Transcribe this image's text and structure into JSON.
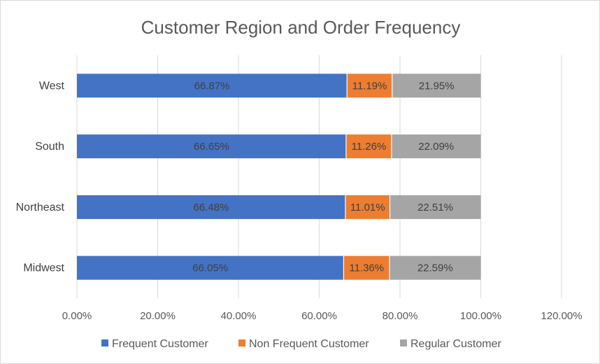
{
  "chart_data": {
    "type": "bar",
    "orientation": "horizontal",
    "stacked": true,
    "title": "Customer Region and Order Frequency",
    "categories": [
      "West",
      "South",
      "Northeast",
      "Midwest"
    ],
    "series": [
      {
        "name": "Frequent Customer",
        "color": "#4472C4",
        "values": [
          66.87,
          66.65,
          66.48,
          66.05
        ],
        "labels": [
          "66.87%",
          "66.65%",
          "66.48%",
          "66.05%"
        ]
      },
      {
        "name": "Non Frequent Customer",
        "color": "#ED7D31",
        "values": [
          11.19,
          11.26,
          11.01,
          11.36
        ],
        "labels": [
          "11.19%",
          "11.26%",
          "11.01%",
          "11.36%"
        ]
      },
      {
        "name": "Regular Customer",
        "color": "#A5A5A5",
        "values": [
          21.95,
          22.09,
          22.51,
          22.59
        ],
        "labels": [
          "21.95%",
          "22.09%",
          "22.51%",
          "22.59%"
        ]
      }
    ],
    "xlim": [
      0,
      120
    ],
    "xticks": [
      0,
      20,
      40,
      60,
      80,
      100,
      120
    ],
    "xtick_labels": [
      "0.00%",
      "20.00%",
      "40.00%",
      "60.00%",
      "80.00%",
      "100.00%",
      "120.00%"
    ],
    "grid": "vertical",
    "legend_position": "bottom",
    "gridline_color": "#D9D9D9"
  }
}
